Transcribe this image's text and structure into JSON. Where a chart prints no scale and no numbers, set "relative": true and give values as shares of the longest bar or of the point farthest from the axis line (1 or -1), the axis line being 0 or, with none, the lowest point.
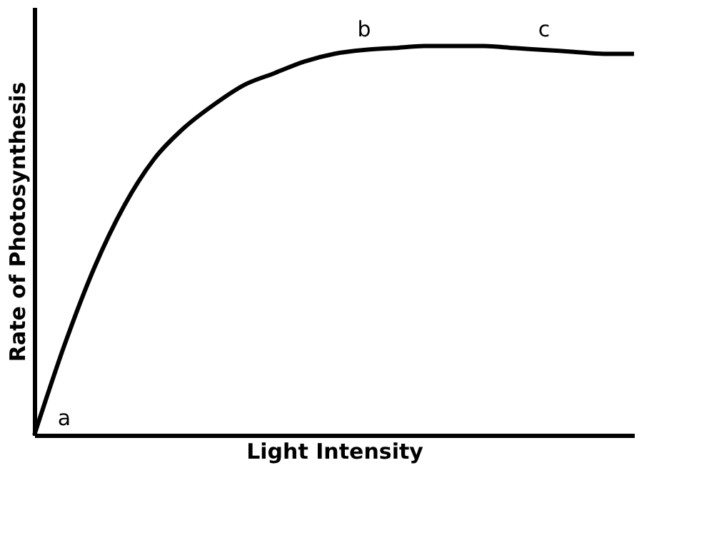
{
  "chart_data": {
    "type": "line",
    "relative": true,
    "xlabel": "Light Intensity",
    "ylabel": "Rate of Photosynthesis",
    "categories": [
      null,
      null,
      null,
      null,
      null,
      null,
      null,
      null,
      null,
      null,
      null,
      null,
      null,
      null,
      null,
      null,
      null,
      null,
      null,
      null,
      null
    ],
    "series": [
      {
        "color": "#000000",
        "values": [
          0,
          0.23,
          0.43,
          0.59,
          0.71,
          0.79,
          0.85,
          0.9,
          0.93,
          0.96,
          0.98,
          0.99,
          0.995,
          1,
          1,
          1,
          0.995,
          0.99,
          0.985,
          0.98,
          0.98
        ]
      }
    ],
    "annotations": [
      "a",
      "b",
      "c"
    ],
    "tick_labels": false,
    "grid": false,
    "marker": "none",
    "line_style": "solid"
  }
}
